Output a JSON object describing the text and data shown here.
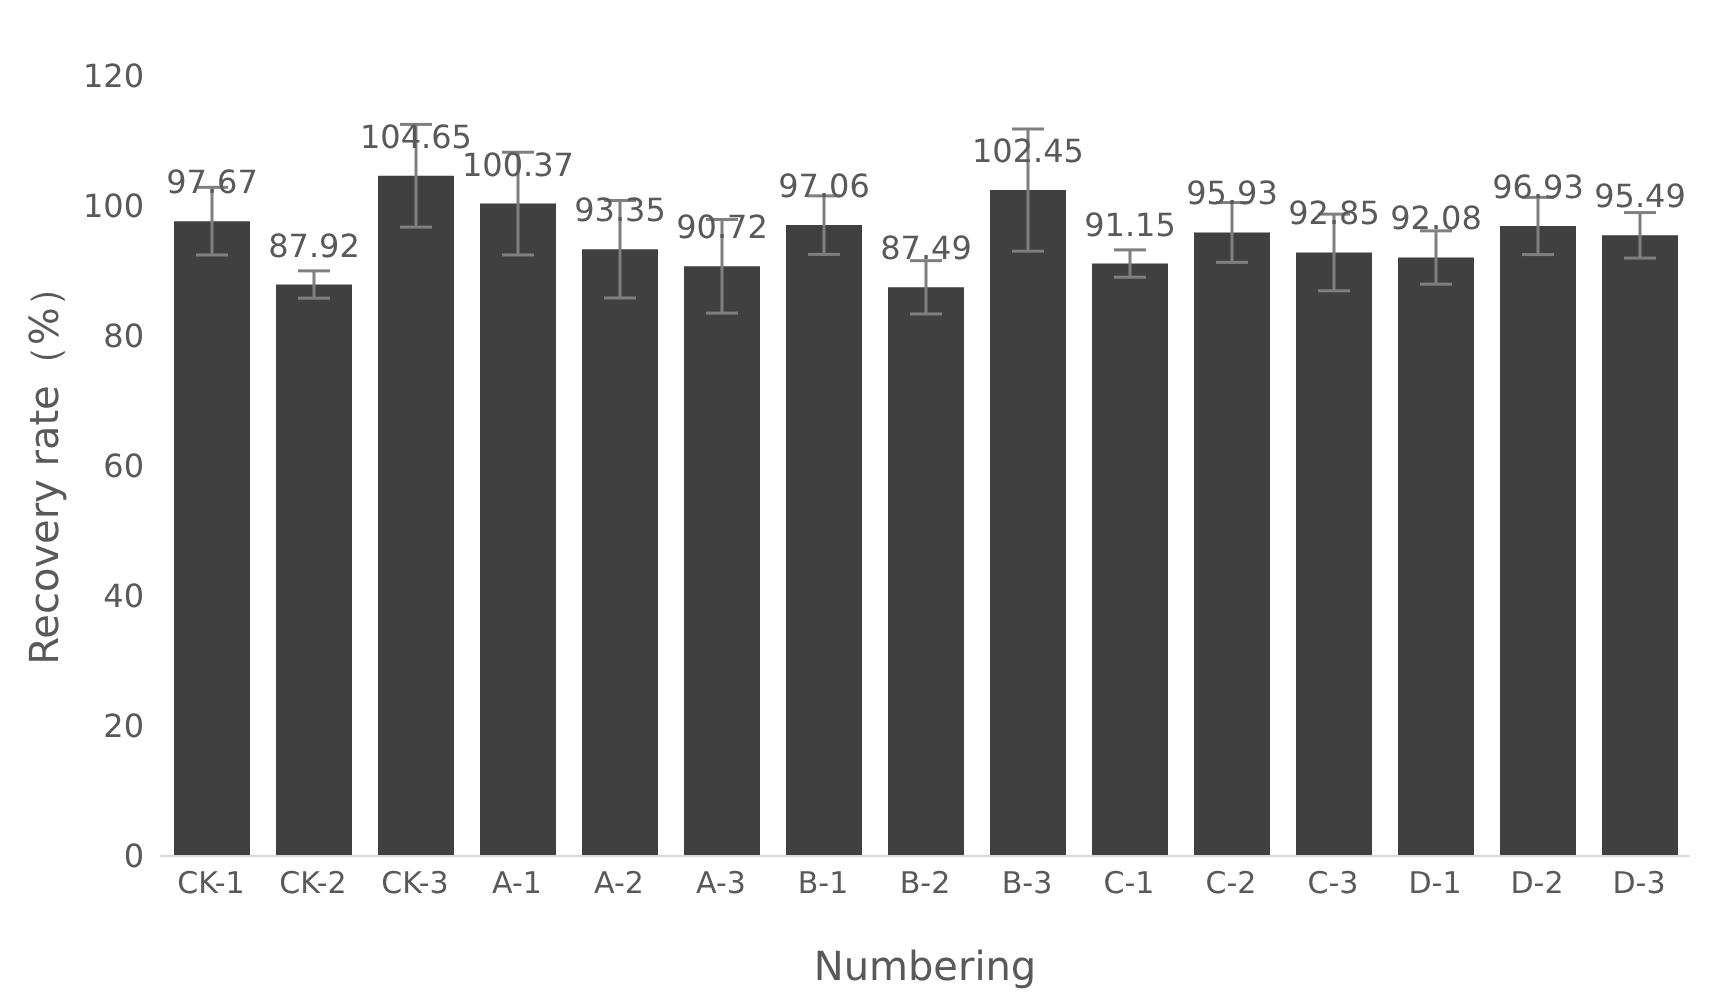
{
  "chart_data": {
    "type": "bar",
    "xlabel": "Numbering",
    "ylabel": "Recovery rate（%）",
    "categories": [
      "CK-1",
      "CK-2",
      "CK-3",
      "A-1",
      "A-2",
      "A-3",
      "B-1",
      "B-2",
      "B-3",
      "C-1",
      "C-2",
      "C-3",
      "D-1",
      "D-2",
      "D-3"
    ],
    "values": [
      97.67,
      87.92,
      104.65,
      100.37,
      93.35,
      90.72,
      97.06,
      87.49,
      102.45,
      91.15,
      95.93,
      92.85,
      92.08,
      96.93,
      95.49
    ],
    "errors": [
      5.2,
      2.1,
      7.9,
      7.9,
      7.5,
      7.2,
      4.5,
      4.1,
      9.4,
      2.1,
      4.6,
      5.9,
      4.1,
      4.4,
      3.5
    ],
    "color": "#404040",
    "ylim": [
      0,
      120
    ],
    "yticks": [
      0,
      20,
      40,
      60,
      80,
      100,
      120
    ],
    "grid": false,
    "data_labels": true,
    "legend": false
  }
}
